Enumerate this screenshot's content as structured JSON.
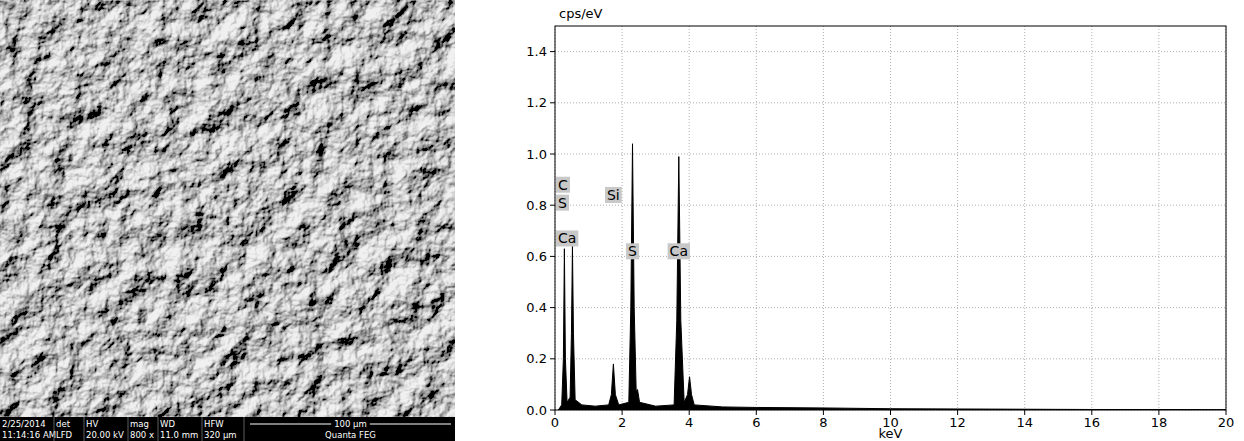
{
  "micrograph": {
    "info_bar": {
      "date": "2/25/2014",
      "time": "11:14:16 AM",
      "columns": [
        {
          "head": "det",
          "value": "LFD"
        },
        {
          "head": "HV",
          "value": "20.00 kV"
        },
        {
          "head": "mag",
          "value": "800 x"
        },
        {
          "head": "WD",
          "value": "11.0 mm"
        },
        {
          "head": "HFW",
          "value": "320 µm"
        }
      ],
      "scale_bar": "100 µm",
      "instrument": "Quanta FEG"
    }
  },
  "chart_data": {
    "type": "area",
    "y_label": "cps/eV",
    "x_label": "keV",
    "color": "#000000",
    "grid": true,
    "x": [
      0.1,
      0.2,
      0.25,
      0.28,
      0.31,
      0.36,
      0.45,
      0.49,
      0.52,
      0.55,
      0.6,
      0.8,
      1.2,
      1.6,
      1.68,
      1.74,
      1.8,
      1.9,
      2.2,
      2.26,
      2.31,
      2.36,
      2.42,
      2.46,
      2.52,
      3.0,
      3.55,
      3.63,
      3.69,
      3.75,
      3.85,
      3.95,
      4.01,
      4.07,
      4.15,
      5,
      6,
      8,
      10,
      12,
      14,
      16,
      18,
      20
    ],
    "values": [
      0.0,
      0.02,
      0.2,
      0.63,
      0.2,
      0.03,
      0.05,
      0.3,
      0.64,
      0.3,
      0.04,
      0.02,
      0.015,
      0.02,
      0.06,
      0.18,
      0.06,
      0.02,
      0.03,
      0.4,
      1.04,
      0.4,
      0.07,
      0.08,
      0.03,
      0.015,
      0.02,
      0.35,
      0.99,
      0.35,
      0.03,
      0.06,
      0.13,
      0.06,
      0.02,
      0.012,
      0.01,
      0.008,
      0.005,
      0.004,
      0.003,
      0.002,
      0.002,
      0.001
    ],
    "xlim": [
      0,
      20
    ],
    "xticks": [
      0,
      2,
      4,
      6,
      8,
      10,
      12,
      14,
      16,
      18,
      20
    ],
    "ylim": [
      0,
      1.5
    ],
    "yticks": [
      {
        "value": 0,
        "label": "0.0"
      },
      0.2,
      0.4,
      0.6,
      0.8,
      {
        "value": 1,
        "label": "1.0"
      },
      1.2,
      1.4
    ],
    "annotations": [
      {
        "text": "C",
        "x": 0.2,
        "y": 0.88
      },
      {
        "text": "S",
        "x": 0.2,
        "y": 0.81
      },
      {
        "text": "Ca",
        "x": 0.2,
        "y": 0.67
      },
      {
        "text": "Si",
        "x": 1.74,
        "y": 0.84
      },
      {
        "text": "S",
        "x": 2.31,
        "y": 0.62
      },
      {
        "text": "Ca",
        "x": 3.69,
        "y": 0.62
      }
    ]
  }
}
